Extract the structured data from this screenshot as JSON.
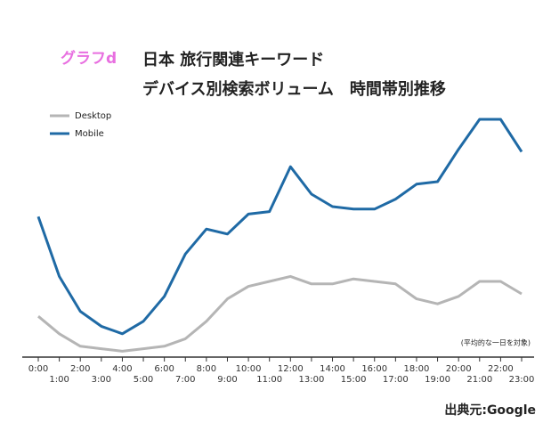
{
  "chart_data": {
    "type": "line",
    "label": "グラフd",
    "title": "日本 旅行関連キーワード",
    "subtitle": "デバイス別検索ボリューム　時間帯別推移",
    "note": "(平均的な一日を対象)",
    "source": "出典元:Google",
    "categories": [
      "0:00",
      "1:00",
      "2:00",
      "3:00",
      "4:00",
      "5:00",
      "6:00",
      "7:00",
      "8:00",
      "9:00",
      "10:00",
      "11:00",
      "12:00",
      "13:00",
      "14:00",
      "15:00",
      "16:00",
      "17:00",
      "18:00",
      "19:00",
      "20:00",
      "21:00",
      "22:00",
      "23:00"
    ],
    "series": [
      {
        "name": "Desktop",
        "color": "#b5b5b5",
        "values": [
          16,
          9,
          4,
          3,
          2,
          3,
          4,
          7,
          14,
          23,
          28,
          30,
          32,
          29,
          29,
          31,
          30,
          29,
          23,
          21,
          24,
          30,
          30,
          25
        ]
      },
      {
        "name": "Mobile",
        "color": "#1f6aa5",
        "values": [
          56,
          32,
          18,
          12,
          9,
          14,
          24,
          41,
          51,
          49,
          57,
          58,
          76,
          65,
          60,
          59,
          59,
          63,
          69,
          70,
          83,
          95,
          95,
          82
        ]
      }
    ],
    "ylim": [
      0,
      100
    ]
  }
}
